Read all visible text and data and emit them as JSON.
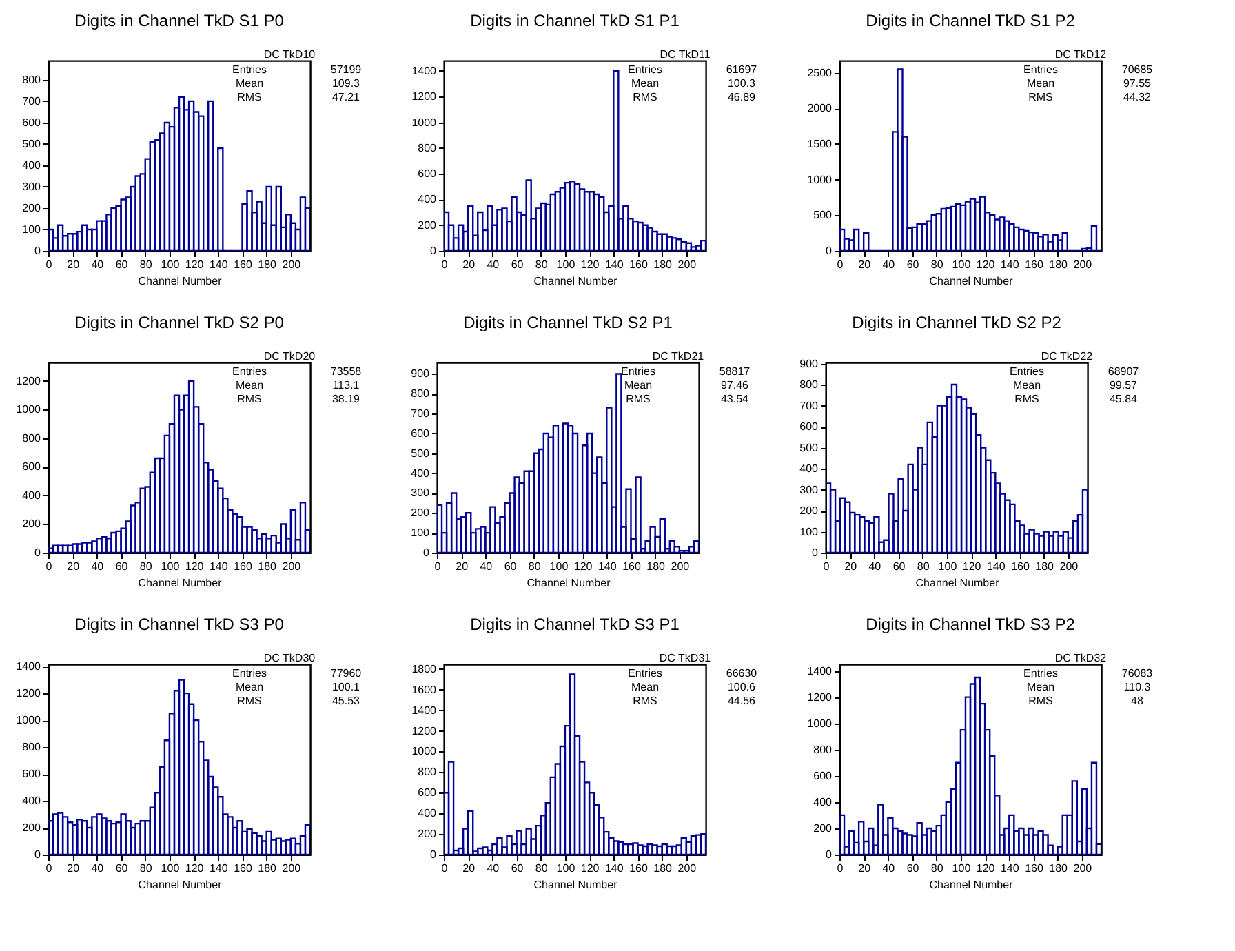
{
  "chart_data": [
    {
      "type": "histogram",
      "title": "Digits in Channel TkD S1 P0",
      "xlabel": "Channel Number",
      "color": "#000099",
      "bins": [
        0,
        4,
        8,
        12,
        16,
        20,
        24,
        28,
        32,
        36,
        40,
        44,
        48,
        52,
        56,
        60,
        64,
        68,
        72,
        76,
        80,
        84,
        88,
        92,
        96,
        100,
        104,
        108,
        112,
        116,
        120,
        124,
        128,
        132,
        136,
        140,
        144,
        148,
        152,
        156,
        160,
        164,
        168,
        172,
        176,
        180,
        184,
        188,
        192,
        196,
        200,
        204,
        208,
        212,
        216
      ],
      "values": [
        100,
        60,
        120,
        70,
        80,
        80,
        90,
        120,
        100,
        100,
        140,
        140,
        170,
        200,
        210,
        240,
        250,
        300,
        350,
        360,
        430,
        510,
        520,
        550,
        600,
        580,
        670,
        720,
        660,
        700,
        650,
        630,
        0,
        700,
        0,
        480,
        0,
        0,
        0,
        0,
        220,
        280,
        180,
        230,
        130,
        300,
        120,
        300,
        110,
        170,
        130,
        100,
        250,
        200
      ],
      "xlim": [
        0,
        216
      ],
      "ylim": [
        0,
        890
      ],
      "xticks": [
        0,
        20,
        40,
        60,
        80,
        100,
        120,
        140,
        160,
        180,
        200
      ],
      "yticks": [
        0,
        100,
        200,
        300,
        400,
        500,
        600,
        700,
        800
      ],
      "annotations": [
        "DC TkD10",
        "Entries",
        "57199",
        "Mean",
        "109.3",
        "RMS",
        "47.21"
      ]
    },
    {
      "type": "histogram",
      "title": "Digits in Channel TkD S1 P1",
      "xlabel": "Channel Number",
      "color": "#000099",
      "bins": [
        0,
        4,
        8,
        12,
        16,
        20,
        24,
        28,
        32,
        36,
        40,
        44,
        48,
        52,
        56,
        60,
        64,
        68,
        72,
        76,
        80,
        84,
        88,
        92,
        96,
        100,
        104,
        108,
        112,
        116,
        120,
        124,
        128,
        132,
        136,
        140,
        144,
        148,
        152,
        156,
        160,
        164,
        168,
        172,
        176,
        180,
        184,
        188,
        192,
        196,
        200,
        204,
        208,
        212,
        216
      ],
      "values": [
        300,
        200,
        100,
        200,
        150,
        350,
        120,
        300,
        160,
        350,
        200,
        320,
        330,
        230,
        420,
        300,
        280,
        550,
        250,
        330,
        370,
        360,
        440,
        460,
        490,
        530,
        540,
        520,
        480,
        460,
        460,
        440,
        420,
        300,
        350,
        1400,
        250,
        350,
        250,
        230,
        220,
        200,
        180,
        150,
        130,
        130,
        110,
        100,
        90,
        70,
        60,
        30,
        40,
        80
      ],
      "xlim": [
        0,
        216
      ],
      "ylim": [
        0,
        1480
      ],
      "xticks": [
        0,
        20,
        40,
        60,
        80,
        100,
        120,
        140,
        160,
        180,
        200
      ],
      "yticks": [
        0,
        200,
        400,
        600,
        800,
        1000,
        1200,
        1400
      ],
      "annotations": [
        "DC TkD11",
        "Entries",
        "61697",
        "Mean",
        "100.3",
        "RMS",
        "46.89"
      ]
    },
    {
      "type": "histogram",
      "title": "Digits in Channel TkD S1 P2",
      "xlabel": "Channel Number",
      "color": "#000099",
      "bins": [
        0,
        4,
        8,
        12,
        16,
        20,
        24,
        28,
        32,
        36,
        40,
        44,
        48,
        52,
        56,
        60,
        64,
        68,
        72,
        76,
        80,
        84,
        88,
        92,
        96,
        100,
        104,
        108,
        112,
        116,
        120,
        124,
        128,
        132,
        136,
        140,
        144,
        148,
        152,
        156,
        160,
        164,
        168,
        172,
        176,
        180,
        184,
        188,
        192,
        196,
        200,
        204,
        208,
        212,
        216
      ],
      "values": [
        300,
        170,
        150,
        300,
        0,
        250,
        0,
        0,
        0,
        0,
        0,
        1670,
        2550,
        1600,
        320,
        330,
        380,
        380,
        420,
        500,
        520,
        590,
        600,
        620,
        660,
        640,
        690,
        730,
        680,
        760,
        540,
        500,
        440,
        470,
        420,
        380,
        330,
        300,
        280,
        260,
        250,
        200,
        230,
        130,
        220,
        150,
        250,
        0,
        0,
        0,
        30,
        40,
        350,
        0
      ],
      "xlim": [
        0,
        216
      ],
      "ylim": [
        0,
        2670
      ],
      "xticks": [
        0,
        20,
        40,
        60,
        80,
        100,
        120,
        140,
        160,
        180,
        200
      ],
      "yticks": [
        0,
        500,
        1000,
        1500,
        2000,
        2500
      ],
      "annotations": [
        "DC TkD12",
        "Entries",
        "70685",
        "Mean",
        "97.55",
        "RMS",
        "44.32"
      ]
    },
    {
      "type": "histogram",
      "title": "Digits in Channel TkD S2 P0",
      "xlabel": "Channel Number",
      "color": "#000099",
      "bins": [
        0,
        4,
        8,
        12,
        16,
        20,
        24,
        28,
        32,
        36,
        40,
        44,
        48,
        52,
        56,
        60,
        64,
        68,
        72,
        76,
        80,
        84,
        88,
        92,
        96,
        100,
        104,
        108,
        112,
        116,
        120,
        124,
        128,
        132,
        136,
        140,
        144,
        148,
        152,
        156,
        160,
        164,
        168,
        172,
        176,
        180,
        184,
        188,
        192,
        196,
        200,
        204,
        208,
        212,
        216
      ],
      "values": [
        30,
        50,
        50,
        50,
        50,
        60,
        60,
        70,
        70,
        80,
        100,
        110,
        100,
        140,
        150,
        170,
        220,
        330,
        350,
        450,
        460,
        560,
        660,
        660,
        820,
        900,
        1100,
        1000,
        1100,
        1200,
        1020,
        900,
        630,
        580,
        500,
        450,
        380,
        300,
        270,
        250,
        180,
        180,
        160,
        100,
        130,
        100,
        120,
        70,
        200,
        100,
        300,
        90,
        350,
        160
      ],
      "xlim": [
        0,
        216
      ],
      "ylim": [
        0,
        1330
      ],
      "xticks": [
        0,
        20,
        40,
        60,
        80,
        100,
        120,
        140,
        160,
        180,
        200
      ],
      "yticks": [
        0,
        200,
        400,
        600,
        800,
        1000,
        1200
      ],
      "annotations": [
        "DC TkD20",
        "Entries",
        "73558",
        "Mean",
        "113.1",
        "RMS",
        "38.19"
      ]
    },
    {
      "type": "histogram",
      "title": "Digits in Channel TkD S2 P1",
      "xlabel": "Channel Number",
      "color": "#000099",
      "bins": [
        0,
        4,
        8,
        12,
        16,
        20,
        24,
        28,
        32,
        36,
        40,
        44,
        48,
        52,
        56,
        60,
        64,
        68,
        72,
        76,
        80,
        84,
        88,
        92,
        96,
        100,
        104,
        108,
        112,
        116,
        120,
        124,
        128,
        132,
        136,
        140,
        144,
        148,
        152,
        156,
        160,
        164,
        168,
        172,
        176,
        180,
        184,
        188,
        192,
        196,
        200,
        204,
        208,
        212,
        216
      ],
      "values": [
        240,
        100,
        250,
        300,
        170,
        180,
        200,
        100,
        120,
        130,
        100,
        230,
        150,
        180,
        250,
        300,
        380,
        350,
        410,
        410,
        500,
        520,
        600,
        580,
        640,
        0,
        650,
        640,
        600,
        0,
        540,
        600,
        400,
        480,
        350,
        730,
        230,
        900,
        130,
        320,
        70,
        380,
        20,
        60,
        130,
        80,
        170,
        20,
        60,
        30,
        10,
        10,
        30,
        60
      ],
      "xlim": [
        0,
        216
      ],
      "ylim": [
        0,
        957
      ],
      "xticks": [
        0,
        20,
        40,
        60,
        80,
        100,
        120,
        140,
        160,
        180,
        200
      ],
      "yticks": [
        0,
        100,
        200,
        300,
        400,
        500,
        600,
        700,
        800,
        900
      ],
      "annotations": [
        "DC TkD21",
        "Entries",
        "58817",
        "Mean",
        "97.46",
        "RMS",
        "43.54"
      ]
    },
    {
      "type": "histogram",
      "title": "Digits in Channel TkD S2 P2",
      "xlabel": "Channel Number",
      "color": "#000099",
      "bins": [
        0,
        4,
        8,
        12,
        16,
        20,
        24,
        28,
        32,
        36,
        40,
        44,
        48,
        52,
        56,
        60,
        64,
        68,
        72,
        76,
        80,
        84,
        88,
        92,
        96,
        100,
        104,
        108,
        112,
        116,
        120,
        124,
        128,
        132,
        136,
        140,
        144,
        148,
        152,
        156,
        160,
        164,
        168,
        172,
        176,
        180,
        184,
        188,
        192,
        196,
        200,
        204,
        208,
        212,
        216
      ],
      "values": [
        330,
        300,
        150,
        260,
        240,
        190,
        180,
        170,
        150,
        140,
        170,
        50,
        60,
        280,
        150,
        350,
        200,
        420,
        300,
        500,
        420,
        620,
        550,
        700,
        700,
        740,
        800,
        740,
        730,
        690,
        660,
        560,
        500,
        440,
        380,
        330,
        280,
        250,
        230,
        150,
        130,
        90,
        110,
        90,
        80,
        100,
        80,
        100,
        80,
        100,
        70,
        150,
        180,
        300
      ],
      "xlim": [
        0,
        216
      ],
      "ylim": [
        0,
        905
      ],
      "xticks": [
        0,
        20,
        40,
        60,
        80,
        100,
        120,
        140,
        160,
        180,
        200
      ],
      "yticks": [
        0,
        100,
        200,
        300,
        400,
        500,
        600,
        700,
        800,
        900
      ],
      "annotations": [
        "DC TkD22",
        "Entries",
        "68907",
        "Mean",
        "99.57",
        "RMS",
        "45.84"
      ]
    },
    {
      "type": "histogram",
      "title": "Digits in Channel TkD S3 P0",
      "xlabel": "Channel Number",
      "color": "#000099",
      "bins": [
        0,
        4,
        8,
        12,
        16,
        20,
        24,
        28,
        32,
        36,
        40,
        44,
        48,
        52,
        56,
        60,
        64,
        68,
        72,
        76,
        80,
        84,
        88,
        92,
        96,
        100,
        104,
        108,
        112,
        116,
        120,
        124,
        128,
        132,
        136,
        140,
        144,
        148,
        152,
        156,
        160,
        164,
        168,
        172,
        176,
        180,
        184,
        188,
        192,
        196,
        200,
        204,
        208,
        212,
        216
      ],
      "values": [
        250,
        300,
        310,
        280,
        240,
        220,
        260,
        250,
        200,
        280,
        300,
        270,
        250,
        230,
        240,
        300,
        250,
        200,
        230,
        250,
        250,
        350,
        460,
        650,
        850,
        1050,
        1220,
        1300,
        1200,
        1120,
        1000,
        840,
        700,
        580,
        500,
        430,
        300,
        280,
        200,
        250,
        170,
        190,
        160,
        140,
        100,
        170,
        110,
        120,
        100,
        110,
        120,
        80,
        140,
        220
      ],
      "xlim": [
        0,
        216
      ],
      "ylim": [
        0,
        1416
      ],
      "xticks": [
        0,
        20,
        40,
        60,
        80,
        100,
        120,
        140,
        160,
        180,
        200
      ],
      "yticks": [
        0,
        200,
        400,
        600,
        800,
        1000,
        1200,
        1400
      ],
      "annotations": [
        "DC TkD30",
        "Entries",
        "77960",
        "Mean",
        "100.1",
        "RMS",
        "45.53"
      ]
    },
    {
      "type": "histogram",
      "title": "Digits in Channel TkD S3 P1",
      "xlabel": "Channel Number",
      "color": "#000099",
      "bins": [
        0,
        4,
        8,
        12,
        16,
        20,
        24,
        28,
        32,
        36,
        40,
        44,
        48,
        52,
        56,
        60,
        64,
        68,
        72,
        76,
        80,
        84,
        88,
        92,
        96,
        100,
        104,
        108,
        112,
        116,
        120,
        124,
        128,
        132,
        136,
        140,
        144,
        148,
        152,
        156,
        160,
        164,
        168,
        172,
        176,
        180,
        184,
        188,
        192,
        196,
        200,
        204,
        208,
        212,
        216
      ],
      "values": [
        600,
        900,
        40,
        60,
        250,
        420,
        30,
        60,
        70,
        40,
        100,
        160,
        70,
        180,
        100,
        230,
        100,
        250,
        150,
        280,
        380,
        500,
        750,
        880,
        1050,
        1250,
        1750,
        1150,
        900,
        700,
        600,
        480,
        360,
        220,
        160,
        130,
        120,
        100,
        100,
        110,
        90,
        80,
        100,
        90,
        80,
        100,
        80,
        80,
        90,
        160,
        120,
        180,
        190,
        200
      ],
      "xlim": [
        0,
        216
      ],
      "ylim": [
        0,
        1846
      ],
      "xticks": [
        0,
        20,
        40,
        60,
        80,
        100,
        120,
        140,
        160,
        180,
        200
      ],
      "yticks": [
        0,
        200,
        400,
        600,
        800,
        1000,
        1200,
        1400,
        1600,
        1800
      ],
      "annotations": [
        "DC TkD31",
        "Entries",
        "66630",
        "Mean",
        "100.6",
        "RMS",
        "44.56"
      ]
    },
    {
      "type": "histogram",
      "title": "Digits in Channel TkD S3 P2",
      "xlabel": "Channel Number",
      "color": "#000099",
      "bins": [
        0,
        4,
        8,
        12,
        16,
        20,
        24,
        28,
        32,
        36,
        40,
        44,
        48,
        52,
        56,
        60,
        64,
        68,
        72,
        76,
        80,
        84,
        88,
        92,
        96,
        100,
        104,
        108,
        112,
        116,
        120,
        124,
        128,
        132,
        136,
        140,
        144,
        148,
        152,
        156,
        160,
        164,
        168,
        172,
        176,
        180,
        184,
        188,
        192,
        196,
        200,
        204,
        208,
        212,
        216
      ],
      "values": [
        300,
        60,
        180,
        90,
        250,
        100,
        200,
        70,
        380,
        150,
        280,
        200,
        180,
        160,
        150,
        140,
        240,
        150,
        200,
        180,
        220,
        300,
        400,
        500,
        700,
        950,
        1200,
        1300,
        1350,
        1150,
        950,
        750,
        450,
        150,
        200,
        300,
        180,
        200,
        150,
        200,
        150,
        180,
        150,
        70,
        0,
        60,
        300,
        300,
        560,
        100,
        500,
        200,
        700,
        80
      ],
      "xlim": [
        0,
        216
      ],
      "ylim": [
        0,
        1450
      ],
      "xticks": [
        0,
        20,
        40,
        60,
        80,
        100,
        120,
        140,
        160,
        180,
        200
      ],
      "yticks": [
        0,
        200,
        400,
        600,
        800,
        1000,
        1200,
        1400
      ],
      "annotations": [
        "DC TkD32",
        "Entries",
        "76083",
        "Mean",
        "110.3",
        "RMS",
        "48"
      ]
    }
  ]
}
